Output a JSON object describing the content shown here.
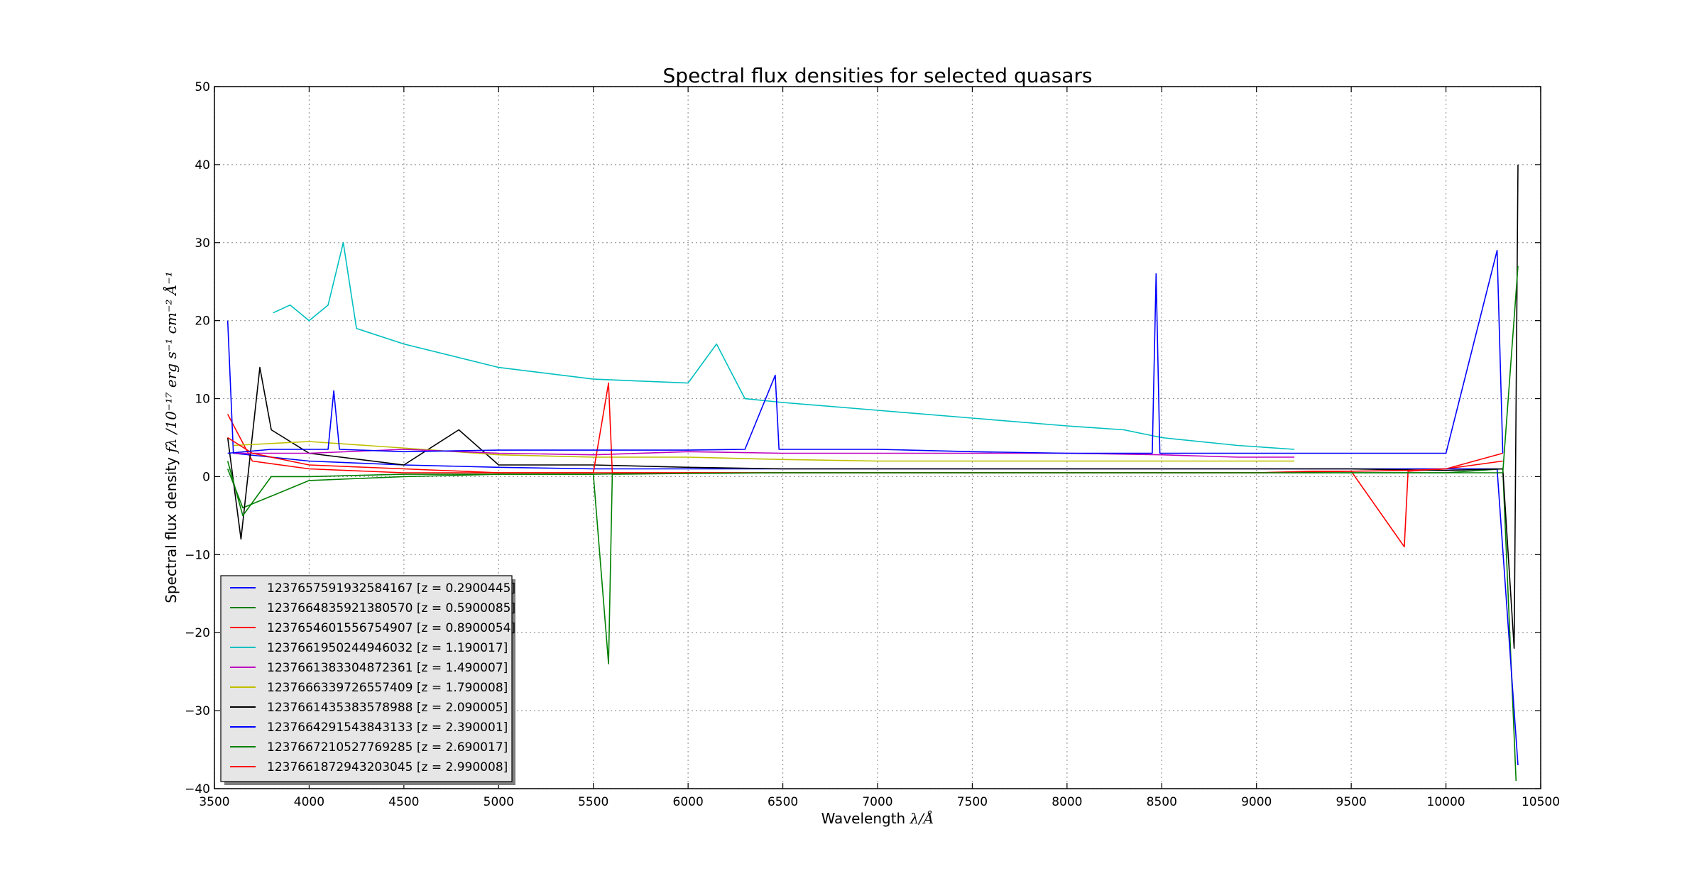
{
  "chart_data": {
    "type": "line",
    "title": "Spectral flux densities for selected quasars",
    "xlabel_text": "Wavelength ",
    "xlabel_math": "λ/Å",
    "ylabel_text": "Spectral flux density ",
    "ylabel_math": "fλ /10⁻¹⁷ erg s⁻¹ cm⁻² Å⁻¹",
    "xlim": [
      3500,
      10500
    ],
    "ylim": [
      -40,
      50
    ],
    "xticks": [
      3500,
      4000,
      4500,
      5000,
      5500,
      6000,
      6500,
      7000,
      7500,
      8000,
      8500,
      9000,
      9500,
      10000,
      10500
    ],
    "yticks": [
      -40,
      -30,
      -20,
      -10,
      0,
      10,
      20,
      30,
      40,
      50
    ],
    "xtick_labels": [
      "3500",
      "4000",
      "4500",
      "5000",
      "5500",
      "6000",
      "6500",
      "7000",
      "7500",
      "8000",
      "8500",
      "9000",
      "9500",
      "10000",
      "10500"
    ],
    "ytick_labels": [
      "−40",
      "−30",
      "−20",
      "−10",
      "0",
      "10",
      "20",
      "30",
      "40",
      "50"
    ],
    "grid": true,
    "legend_position": "lower-left",
    "series": [
      {
        "name": "1237657591932584167 [z = 0.2900445]",
        "color": "#0000ff",
        "x": [
          3570,
          3800,
          4100,
          4130,
          4160,
          4500,
          5000,
          5500,
          6000,
          6300,
          6460,
          6480,
          6500,
          7000,
          7500,
          8000,
          8450,
          8470,
          8490,
          8500,
          9000,
          9500,
          10000,
          10270,
          10300
        ],
        "y": [
          3,
          3.5,
          3.5,
          11,
          3.5,
          3.2,
          3.4,
          3.4,
          3.4,
          3.5,
          13,
          3.5,
          3.5,
          3.5,
          3.2,
          3,
          3,
          26,
          3,
          3,
          3,
          3,
          3,
          29,
          3
        ]
      },
      {
        "name": "1237664835921380570 [z = 0.5900085]",
        "color": "#008000",
        "x": [
          3570,
          3650,
          3800,
          4000,
          4500,
          5000,
          5500,
          5580,
          5600,
          6000,
          6500,
          7000,
          7500,
          8000,
          8500,
          9000,
          9500,
          10000,
          10300,
          10380
        ],
        "y": [
          2,
          -5,
          0,
          0,
          0.3,
          0.3,
          0.3,
          -24,
          0.3,
          0.4,
          0.5,
          0.5,
          0.5,
          0.5,
          0.5,
          0.5,
          0.5,
          0.5,
          0.5,
          27
        ]
      },
      {
        "name": "1237654601556754907 [z = 0.8900054]",
        "color": "#ff0000",
        "x": [
          3570,
          3700,
          4000,
          4500,
          5000,
          5500,
          5580,
          5600,
          6000,
          6500,
          7000,
          7500,
          8000,
          8500,
          9000,
          9300,
          9500,
          9800,
          10000,
          10300
        ],
        "y": [
          5,
          3,
          1.5,
          1,
          0.5,
          0.5,
          12,
          0.5,
          0.5,
          0.5,
          0.5,
          0.5,
          0.5,
          0.5,
          0.5,
          0.7,
          0.7,
          0.8,
          1,
          3
        ]
      },
      {
        "name": "1237661950244946032 [z = 1.190017]",
        "color": "#00bfbf",
        "x": [
          3810,
          3900,
          4000,
          4100,
          4180,
          4250,
          4500,
          5000,
          5500,
          6000,
          6150,
          6300,
          6500,
          7000,
          7500,
          8000,
          8300,
          8500,
          8900,
          9200
        ],
        "y": [
          21,
          22,
          20,
          22,
          30,
          19,
          17,
          14,
          12.5,
          12,
          17,
          10,
          9.5,
          8.5,
          7.5,
          6.5,
          6,
          5,
          4,
          3.5
        ]
      },
      {
        "name": "1237661383304872361 [z = 1.490007]",
        "color": "#bf00bf",
        "x": [
          3600,
          4000,
          4500,
          5000,
          5500,
          6000,
          6500,
          7000,
          7500,
          8000,
          8500,
          8900,
          9200
        ],
        "y": [
          3,
          3,
          3.5,
          3,
          2.8,
          3.2,
          3,
          3,
          3,
          3,
          2.8,
          2.5,
          2.5
        ]
      },
      {
        "name": "1237666339726557409 [z = 1.790008]",
        "color": "#bfbf00",
        "x": [
          3600,
          4000,
          4300,
          4600,
          5000,
          5500,
          6000,
          6500,
          7000,
          7500,
          8000,
          8500,
          9000,
          9200
        ],
        "y": [
          4,
          4.5,
          4,
          3.5,
          2.8,
          2.5,
          2.5,
          2.2,
          2,
          2,
          2,
          2,
          2,
          2
        ]
      },
      {
        "name": "1237661435383578988 [z = 2.090005]",
        "color": "#000000",
        "x": [
          3570,
          3640,
          3740,
          3800,
          4000,
          4500,
          4790,
          5000,
          5500,
          6000,
          6500,
          7000,
          7500,
          8000,
          8500,
          9000,
          9500,
          10000,
          10300,
          10360,
          10380
        ],
        "y": [
          5,
          -8,
          14,
          6,
          3,
          1.5,
          6,
          1.5,
          1.5,
          1.2,
          1,
          1,
          1,
          1,
          1,
          1,
          1,
          0.8,
          1,
          -22,
          40
        ]
      },
      {
        "name": "1237664291543843133 [z = 2.390001]",
        "color": "#0000ff",
        "x": [
          3570,
          3600,
          4000,
          4500,
          5000,
          5500,
          6000,
          6500,
          7000,
          7500,
          8000,
          8500,
          9000,
          9500,
          10000,
          10270,
          10380
        ],
        "y": [
          20,
          3,
          2,
          1.5,
          1.2,
          1,
          1,
          1,
          1,
          1,
          1,
          1,
          1,
          1,
          1,
          1,
          -37
        ]
      },
      {
        "name": "1237667210527769285 [z = 2.690017]",
        "color": "#008000",
        "x": [
          3570,
          3650,
          4000,
          4500,
          5000,
          5500,
          6000,
          6500,
          7000,
          7500,
          8000,
          8500,
          9000,
          9500,
          10000,
          10300,
          10370
        ],
        "y": [
          1,
          -4,
          -0.5,
          0,
          0.3,
          0.3,
          0.5,
          0.5,
          0.5,
          0.5,
          0.5,
          0.5,
          0.5,
          0.5,
          0.5,
          1,
          -39
        ]
      },
      {
        "name": "1237661872943203045 [z = 2.990008]",
        "color": "#ff0000",
        "x": [
          3570,
          3700,
          4000,
          4500,
          5000,
          5500,
          6000,
          6500,
          7000,
          7500,
          8000,
          8500,
          9000,
          9500,
          9780,
          9800,
          10000,
          10300
        ],
        "y": [
          8,
          2,
          1,
          0.5,
          0.5,
          0.5,
          0.5,
          0.5,
          0.5,
          0.5,
          0.5,
          0.5,
          0.5,
          0.7,
          -9,
          0.7,
          1,
          2
        ]
      }
    ]
  }
}
